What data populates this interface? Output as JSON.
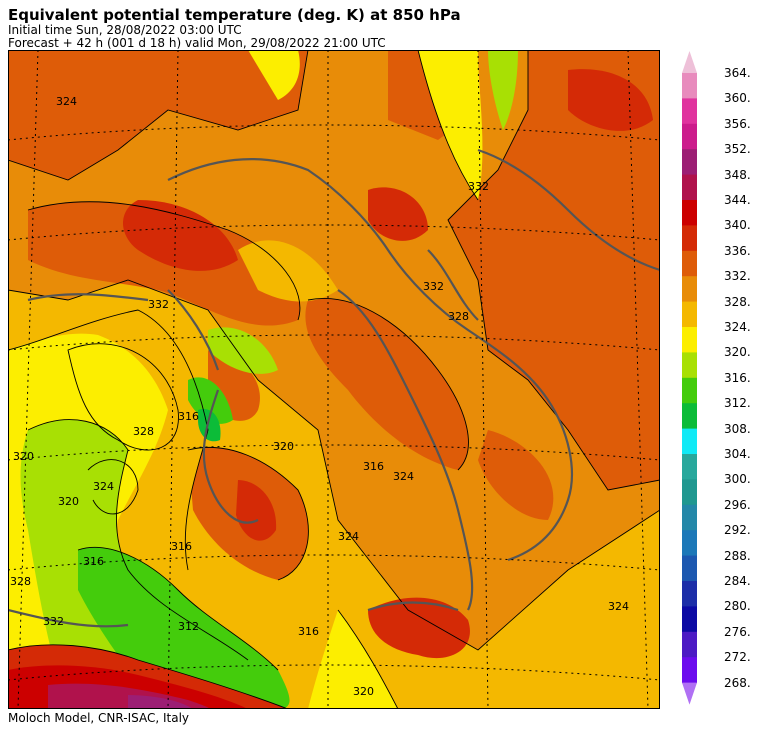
{
  "header": {
    "title": "Equivalent potential temperature (deg. K) at 850 hPa",
    "initial_time": "Initial time  Sun, 28/08/2022  03:00 UTC",
    "forecast": "Forecast  +  42 h  (001 d 18 h)  valid Mon, 29/08/2022 21:00 UTC"
  },
  "footer": "Moloch Model, CNR-ISAC, Italy",
  "legend": {
    "labels": [
      "364.",
      "360.",
      "356.",
      "352.",
      "348.",
      "344.",
      "340.",
      "336.",
      "332.",
      "328.",
      "324.",
      "320.",
      "316.",
      "312.",
      "308.",
      "304.",
      "300.",
      "296.",
      "292.",
      "288.",
      "284.",
      "280.",
      "276.",
      "272.",
      "268."
    ],
    "colors": [
      "#eec0d8",
      "#e88bbd",
      "#e0339e",
      "#cc1c8c",
      "#9c1e74",
      "#b0124c",
      "#cc0000",
      "#d42a06",
      "#de5c08",
      "#e88c08",
      "#f4b800",
      "#fcee00",
      "#a8e004",
      "#44cc0c",
      "#0cbc38",
      "#10eaf6",
      "#28a89c",
      "#209890",
      "#2488a8",
      "#1c78b8",
      "#1c58b0",
      "#1c2ea8",
      "#0c0aa4",
      "#4c1ac4",
      "#6c0cee",
      "#b070f4"
    ]
  },
  "map": {
    "contour_labels": [
      "324",
      "332",
      "332",
      "328",
      "324",
      "320",
      "316",
      "328",
      "320",
      "316",
      "316",
      "324",
      "328",
      "332",
      "320",
      "324",
      "320",
      "316",
      "316",
      "312",
      "324",
      "332"
    ]
  }
}
